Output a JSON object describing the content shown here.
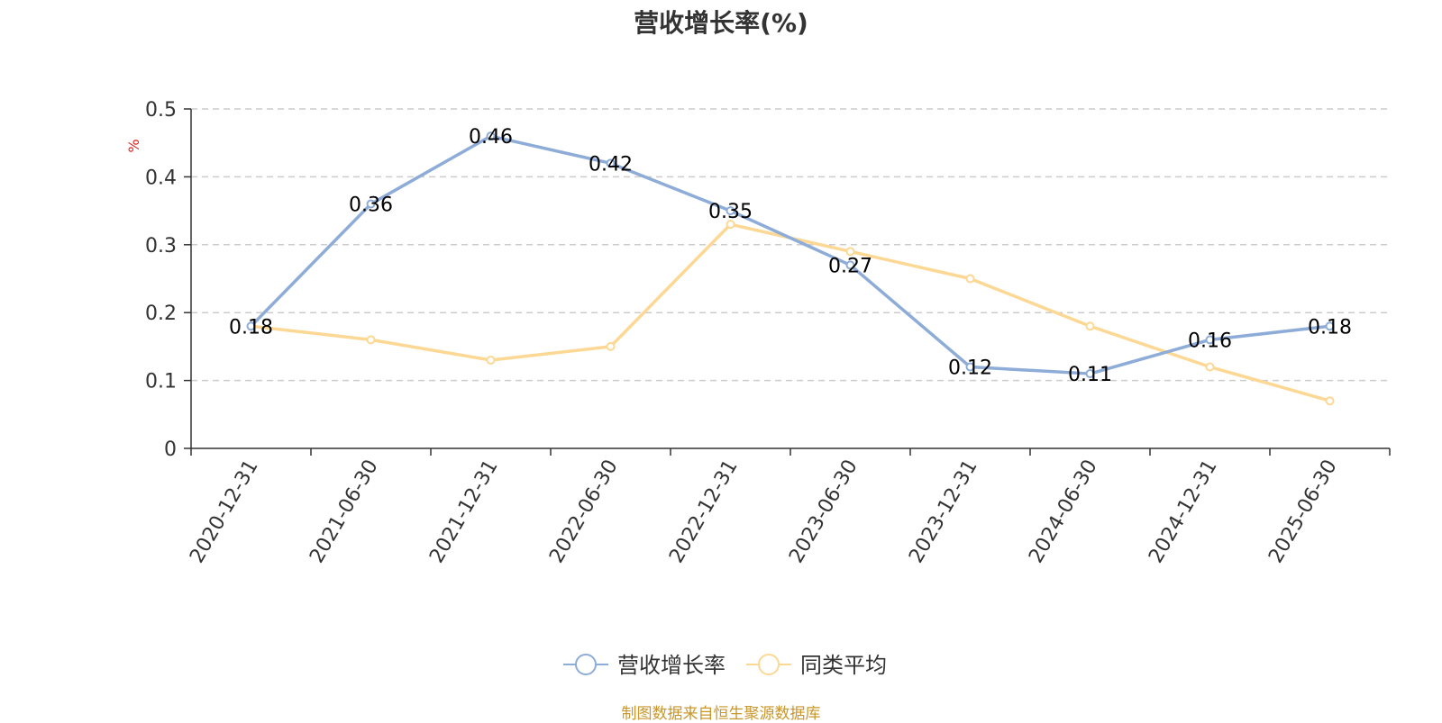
{
  "title": "营收增长率(%)",
  "source_note": "制图数据来自恒生聚源数据库",
  "chart_data": {
    "type": "line",
    "title": "营收增长率(%)",
    "ylabel": "%",
    "ylim": [
      0,
      0.5
    ],
    "yticks": [
      "0",
      "0.1",
      "0.2",
      "0.3",
      "0.4",
      "0.5"
    ],
    "grid": true,
    "legend_position": "bottom-center",
    "categories": [
      "2020-12-31",
      "2021-06-30",
      "2021-12-31",
      "2022-06-30",
      "2022-12-31",
      "2023-06-30",
      "2023-12-31",
      "2024-06-30",
      "2024-12-31",
      "2025-06-30"
    ],
    "series": [
      {
        "name": "营收增长率",
        "color": "#8eacd8",
        "values": [
          0.18,
          0.36,
          0.46,
          0.42,
          0.35,
          0.27,
          0.12,
          0.11,
          0.16,
          0.18
        ],
        "labels": [
          "0.18",
          "0.36",
          "0.46",
          "0.42",
          "0.35",
          "0.27",
          "0.12",
          "0.11",
          "0.16",
          "0.18"
        ]
      },
      {
        "name": "同类平均",
        "color": "#fcd894",
        "values": [
          0.18,
          0.16,
          0.13,
          0.15,
          0.33,
          0.29,
          0.25,
          0.18,
          0.12,
          0.07
        ]
      }
    ]
  },
  "colors": {
    "unit_label": "#e02020",
    "axis": "#333333",
    "grid": "#cccccc",
    "source": "#c8962a"
  }
}
